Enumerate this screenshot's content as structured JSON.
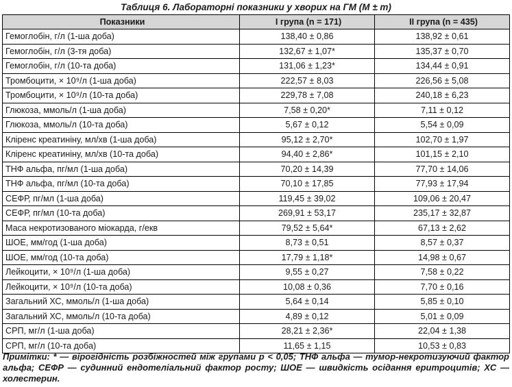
{
  "title": "Таблиця 6. Лабораторні показники у хворих на ГМ (M ± m)",
  "columns": [
    "Показники",
    "I група (n = 171)",
    "II група (n = 435)"
  ],
  "rows": [
    {
      "label": "Гемоглобін, г/л (1-ша доба)",
      "g1": "138,40 ± 0,86",
      "g2": "138,92 ± 0,61"
    },
    {
      "label": "Гемоглобін, г/л (3-тя доба)",
      "g1": "132,67 ± 1,07*",
      "g2": "135,37 ± 0,70"
    },
    {
      "label": "Гемоглобін, г/л (10-та доба)",
      "g1": "131,06 ± 1,23*",
      "g2": "134,44 ± 0,91"
    },
    {
      "label": "Тромбоцити, × 10⁹/л (1-ша доба)",
      "g1": "222,57 ± 8,03",
      "g2": "226,56 ± 5,08"
    },
    {
      "label": "Тромбоцити, × 10⁹/л (10-та доба)",
      "g1": "229,78 ± 7,08",
      "g2": "240,18 ± 6,23"
    },
    {
      "label": "Глюкоза, ммоль/л (1-ша доба)",
      "g1": "7,58 ± 0,20*",
      "g2": "7,11 ± 0,12"
    },
    {
      "label": "Глюкоза, ммоль/л (10-та доба)",
      "g1": "5,67 ± 0,12",
      "g2": "5,54 ± 0,09"
    },
    {
      "label": "Кліренс креатиніну, мл/хв (1-ша доба)",
      "g1": "95,12 ± 2,70*",
      "g2": "102,70 ± 1,97"
    },
    {
      "label": "Кліренс креатиніну, мл/хв (10-та доба)",
      "g1": "94,40 ± 2,86*",
      "g2": "101,15 ± 2,10"
    },
    {
      "label": "ТНФ альфа, пг/мл (1-ша доба)",
      "g1": "70,20 ± 14,39",
      "g2": "77,70 ± 14,06"
    },
    {
      "label": "ТНФ альфа, пг/мл (10-та доба)",
      "g1": "70,10 ± 17,85",
      "g2": "77,93 ± 17,94"
    },
    {
      "label": "СЕФР, пг/мл (1-ша доба)",
      "g1": "119,45 ± 39,02",
      "g2": "109,06 ± 20,47"
    },
    {
      "label": "СЕФР, пг/мл (10-та доба)",
      "g1": "269,91 ± 53,17",
      "g2": "235,17 ± 32,87"
    },
    {
      "label": "Маса некротизованого міокарда, г/екв",
      "g1": "79,52 ± 5,64*",
      "g2": "67,13 ± 2,62"
    },
    {
      "label": "ШОЕ, мм/год (1-ша доба)",
      "g1": "8,73 ± 0,51",
      "g2": "8,57 ± 0,37"
    },
    {
      "label": "ШОЕ, мм/год (10-та доба)",
      "g1": "17,79 ± 1,18*",
      "g2": "14,98 ± 0,67"
    },
    {
      "label": "Лейкоцити, × 10⁹/л (1-ша доба)",
      "g1": "9,55 ± 0,27",
      "g2": "7,58 ± 0,22"
    },
    {
      "label": "Лейкоцити, × 10⁹/л (10-та доба)",
      "g1": "10,08 ± 0,36",
      "g2": "7,70 ± 0,16"
    },
    {
      "label": "Загальний ХС, ммоль/л (1-ша доба)",
      "g1": "5,64 ± 0,14",
      "g2": "5,85 ± 0,10"
    },
    {
      "label": "Загальний ХС, ммоль/л (10-та доба)",
      "g1": "4,89 ± 0,12",
      "g2": "5,01 ± 0,09"
    },
    {
      "label": "СРП, мг/л (1-ша доба)",
      "g1": "28,21 ± 2,36*",
      "g2": "22,04 ± 1,38"
    },
    {
      "label": "СРП, мг/л (10-та доба)",
      "g1": "11,65 ± 1,15",
      "g2": "10,53 ± 0,83"
    }
  ],
  "note": "Примітки: * — вірогідність розбіжностей між групами p < 0,05; ТНФ альфа — тумор-некротизуючий фактор альфа; СЕФР — судинний ендотеліальний фактор росту; ШОЕ — швидкість осідання еритроцитів; ХС — холестерин."
}
